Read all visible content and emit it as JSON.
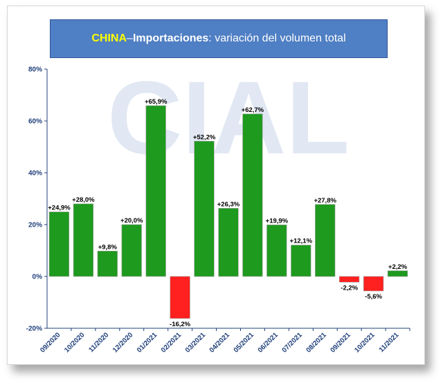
{
  "title": {
    "country": "CHINA",
    "dash": " – ",
    "strong": "Importaciones",
    "rest": ": variación del volumen total"
  },
  "watermark": "CIAL",
  "colors": {
    "positive": "#1e9a1e",
    "negative": "#ff2020",
    "title_bg": "#4f7fc4",
    "title_accent": "#ffff00",
    "axis_text": "#1f3f7a"
  },
  "chart_data": {
    "type": "bar",
    "categories": [
      "09/2020",
      "10/2020",
      "11/2020",
      "12/2020",
      "01/2021",
      "02/2021",
      "03/2021",
      "04/2021",
      "05/2021",
      "06/2021",
      "07/2021",
      "08/2021",
      "09/2021",
      "10/2021",
      "11/2021"
    ],
    "values": [
      24.9,
      28.0,
      9.8,
      20.0,
      65.9,
      -16.2,
      52.2,
      26.3,
      62.7,
      19.9,
      12.1,
      27.8,
      -2.2,
      -5.6,
      2.2
    ],
    "data_labels": [
      "+24,9%",
      "+28,0%",
      "+9,8%",
      "+20,0%",
      "+65,9%",
      "-16,2%",
      "+52,2%",
      "+26,3%",
      "+62,7%",
      "+19,9%",
      "+12,1%",
      "+27,8%",
      "-2,2%",
      "-5,6%",
      "+2,2%"
    ],
    "yticks": [
      -20,
      0,
      20,
      40,
      60,
      80
    ],
    "ytick_labels": [
      "-20%",
      "0%",
      "20%",
      "40%",
      "60%",
      "80%"
    ],
    "ylim": [
      -20,
      80
    ],
    "grid": false,
    "legend": "none",
    "title": "CHINA – Importaciones: variación del volumen total"
  }
}
